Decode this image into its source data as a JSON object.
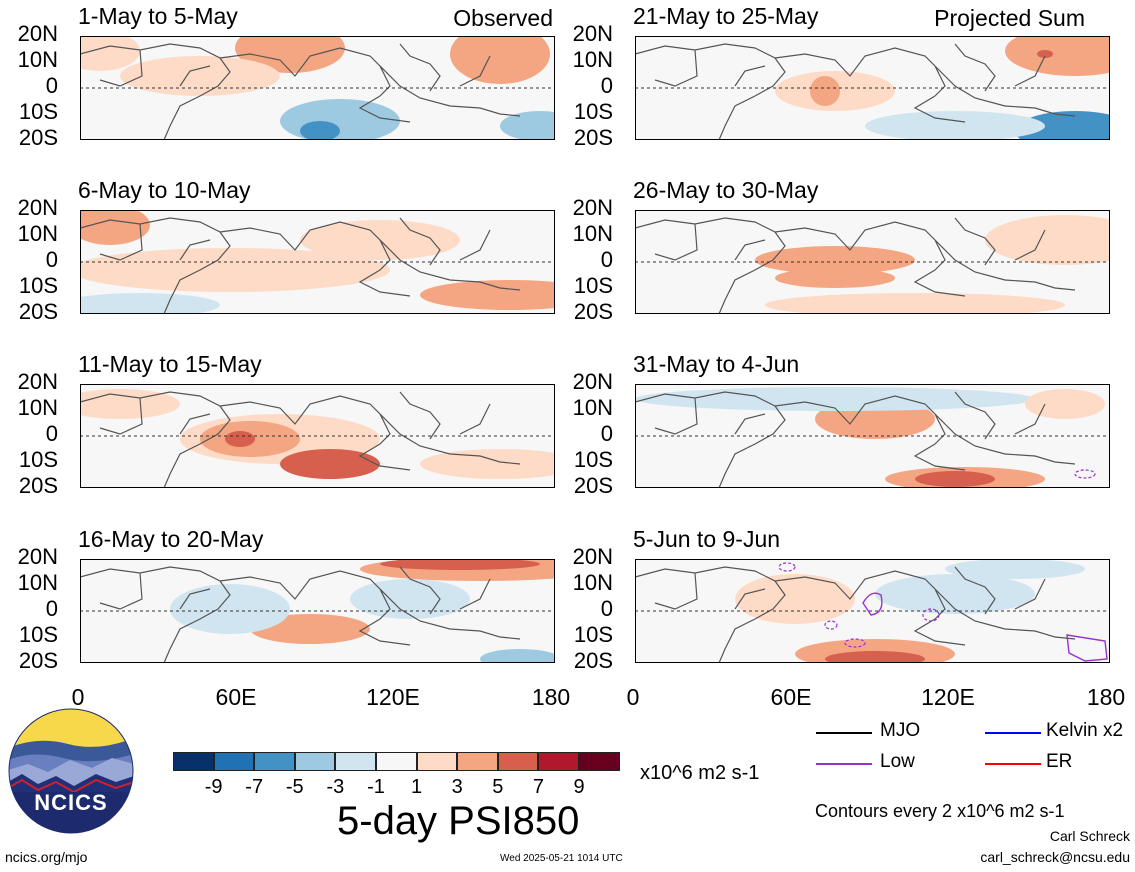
{
  "panels": [
    {
      "title": "1-May to 5-May",
      "label": "Observed"
    },
    {
      "title": "21-May to 25-May",
      "label": "Projected Sum"
    },
    {
      "title": "6-May to 10-May",
      "label": ""
    },
    {
      "title": "26-May to 30-May",
      "label": ""
    },
    {
      "title": "11-May to 15-May",
      "label": ""
    },
    {
      "title": "31-May to 4-Jun",
      "label": ""
    },
    {
      "title": "16-May to 20-May",
      "label": ""
    },
    {
      "title": "5-Jun to 9-Jun",
      "label": ""
    }
  ],
  "lat_labels": [
    "20N",
    "10N",
    "0",
    "10S",
    "20S"
  ],
  "lon_labels": [
    "0",
    "60E",
    "120E",
    "180"
  ],
  "colorbar": {
    "colors": [
      "#08306b",
      "#2171b5",
      "#4292c6",
      "#9ecae1",
      "#d1e5f0",
      "#f7f7f7",
      "#fddbc7",
      "#f4a582",
      "#d6604d",
      "#b2182b",
      "#67001f"
    ],
    "labels": [
      "-9",
      "-7",
      "-5",
      "-3",
      "-1",
      "1",
      "3",
      "5",
      "7",
      "9"
    ],
    "units": "x10^6 m2 s-1"
  },
  "main_title": "5-day PSI850",
  "legend": [
    {
      "name": "MJO",
      "color": "#000000"
    },
    {
      "name": "Kelvin x2",
      "color": "#0000ff"
    },
    {
      "name": "Low",
      "color": "#9a32cd"
    },
    {
      "name": "ER",
      "color": "#ff0000"
    }
  ],
  "contour_note": "Contours every 2 x10^6 m2 s-1",
  "author": "Carl Schreck",
  "email": "carl_schreck@ncsu.edu",
  "site": "ncics.org/mjo",
  "timestamp": "Wed 2025-05-21 1014 UTC",
  "logo_text": "NCICS"
}
